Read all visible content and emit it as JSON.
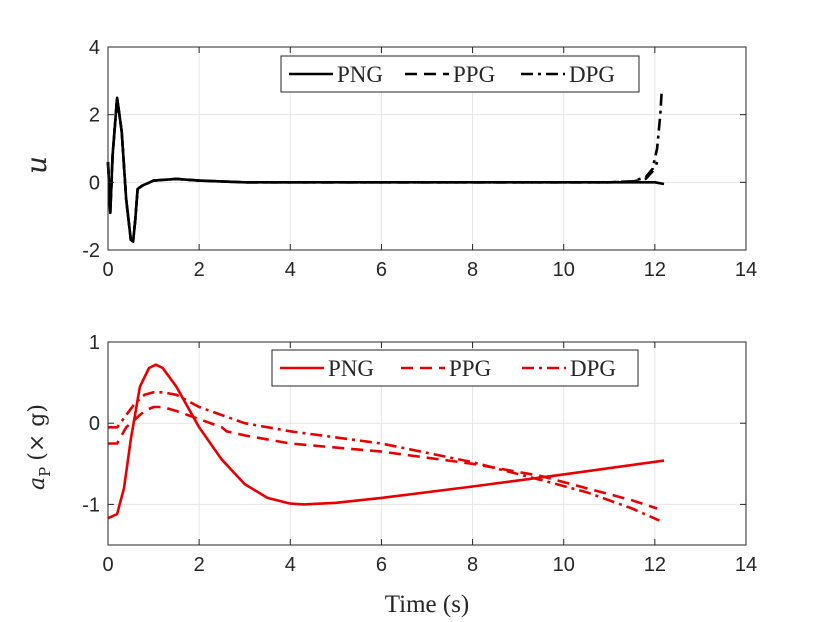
{
  "chart_data": [
    {
      "type": "line",
      "ylabel": "u",
      "xlabel": "",
      "xlim": [
        0,
        14
      ],
      "ylim": [
        -2,
        4
      ],
      "xticks": [
        "0",
        "2",
        "4",
        "6",
        "8",
        "10",
        "12",
        "14"
      ],
      "yticks": [
        "-2",
        "0",
        "2",
        "4"
      ],
      "grid": true,
      "legend": {
        "position": "top-right",
        "orientation": "horizontal"
      },
      "color": "#000000",
      "series": [
        {
          "name": "PNG",
          "style": "solid",
          "x": [
            0,
            0.05,
            0.1,
            0.2,
            0.3,
            0.4,
            0.5,
            0.55,
            0.6,
            0.65,
            0.75,
            1.0,
            1.5,
            2.0,
            3.0,
            5.0,
            8.0,
            10.0,
            12.0,
            12.2
          ],
          "y": [
            0.6,
            -0.9,
            0.8,
            2.5,
            1.5,
            -0.5,
            -1.7,
            -1.75,
            -1.1,
            -0.2,
            -0.1,
            0.05,
            0.1,
            0.05,
            0.0,
            0.0,
            0.0,
            0.0,
            0.0,
            -0.05
          ]
        },
        {
          "name": "PPG",
          "style": "dashed",
          "x": [
            0,
            0.05,
            0.1,
            0.2,
            0.3,
            0.4,
            0.5,
            0.55,
            0.6,
            0.65,
            0.75,
            1.0,
            1.5,
            2.0,
            3.0,
            5.0,
            8.0,
            10.0,
            11.0,
            11.5,
            11.8,
            12.0,
            12.05
          ],
          "y": [
            0.6,
            -0.9,
            0.8,
            2.5,
            1.5,
            -0.5,
            -1.7,
            -1.75,
            -1.1,
            -0.2,
            -0.1,
            0.05,
            0.1,
            0.05,
            0.0,
            0.0,
            0.0,
            0.0,
            0.0,
            0.02,
            0.1,
            0.4,
            0.6
          ]
        },
        {
          "name": "DPG",
          "style": "dashdot",
          "x": [
            0,
            0.05,
            0.1,
            0.2,
            0.3,
            0.4,
            0.5,
            0.55,
            0.6,
            0.65,
            0.75,
            1.0,
            1.5,
            2.0,
            3.0,
            5.0,
            8.0,
            10.0,
            11.0,
            11.5,
            11.8,
            11.95,
            12.05,
            12.12,
            12.15
          ],
          "y": [
            0.6,
            -0.9,
            0.8,
            2.5,
            1.5,
            -0.5,
            -1.7,
            -1.75,
            -1.1,
            -0.2,
            -0.1,
            0.05,
            0.1,
            0.05,
            0.0,
            0.0,
            0.0,
            0.0,
            0.0,
            0.03,
            0.15,
            0.4,
            1.0,
            2.0,
            2.7
          ]
        }
      ]
    },
    {
      "type": "line",
      "ylabel": "a_P (× g)",
      "xlabel": "Time (s)",
      "xlim": [
        0,
        14
      ],
      "ylim": [
        -1.5,
        1
      ],
      "xticks": [
        "0",
        "2",
        "4",
        "6",
        "8",
        "10",
        "12",
        "14"
      ],
      "yticks": [
        "-1",
        "0",
        "1"
      ],
      "grid": true,
      "legend": {
        "position": "top-right",
        "orientation": "horizontal"
      },
      "color": "#e60000",
      "series": [
        {
          "name": "PNG",
          "style": "solid",
          "x": [
            0,
            0.2,
            0.35,
            0.5,
            0.7,
            0.9,
            1.05,
            1.2,
            1.5,
            2.0,
            2.5,
            3.0,
            3.5,
            4.0,
            4.3,
            5.0,
            6.0,
            8.0,
            10.0,
            12.2
          ],
          "y": [
            -1.17,
            -1.12,
            -0.8,
            -0.2,
            0.45,
            0.68,
            0.72,
            0.68,
            0.45,
            -0.05,
            -0.45,
            -0.75,
            -0.92,
            -0.99,
            -1.0,
            -0.98,
            -0.92,
            -0.78,
            -0.63,
            -0.46
          ]
        },
        {
          "name": "PPG",
          "style": "dashed",
          "x": [
            0,
            0.2,
            0.4,
            0.6,
            0.8,
            1.0,
            1.2,
            1.5,
            2.0,
            2.5,
            2.6,
            3.0,
            4.0,
            6.0,
            8.0,
            9.5,
            10.5,
            11.5,
            12.05
          ],
          "y": [
            -0.25,
            -0.25,
            -0.05,
            0.05,
            0.15,
            0.2,
            0.2,
            0.15,
            0.05,
            -0.05,
            -0.1,
            -0.15,
            -0.25,
            -0.35,
            -0.5,
            -0.65,
            -0.8,
            -0.95,
            -1.05
          ]
        },
        {
          "name": "DPG",
          "style": "dashdot",
          "x": [
            0,
            0.2,
            0.4,
            0.6,
            0.8,
            1.0,
            1.2,
            1.5,
            2.0,
            2.5,
            3.0,
            4.0,
            6.0,
            8.0,
            9.5,
            10.5,
            11.5,
            12.1
          ],
          "y": [
            -0.05,
            -0.05,
            0.1,
            0.25,
            0.35,
            0.38,
            0.38,
            0.35,
            0.2,
            0.1,
            0.0,
            -0.1,
            -0.25,
            -0.48,
            -0.7,
            -0.85,
            -1.05,
            -1.2
          ]
        }
      ]
    }
  ]
}
